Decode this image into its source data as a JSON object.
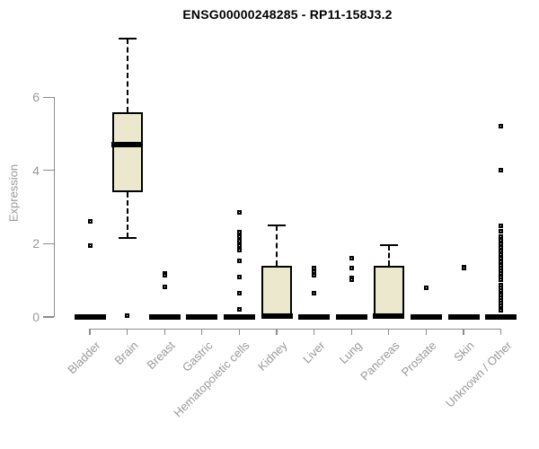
{
  "chart_data": {
    "type": "boxplot",
    "title": "ENSG00000248285 - RP11-158J3.2",
    "xlabel": "",
    "ylabel": "Expression",
    "ylim": [
      0,
      7.6
    ],
    "y_ticks": [
      0,
      2,
      4,
      6
    ],
    "grid": false,
    "legend": false,
    "categories": [
      "Bladder",
      "Brain",
      "Breast",
      "Gastric",
      "Hematopoietic cells",
      "Kidney",
      "Liver",
      "Lung",
      "Pancreas",
      "Prostate",
      "Skin",
      "Unknown / Other"
    ],
    "series": [
      {
        "name": "Bladder",
        "q1": 0,
        "median": 0,
        "q3": 0,
        "whisker_low": 0,
        "whisker_high": 0,
        "outliers": [
          2.6,
          1.95
        ]
      },
      {
        "name": "Brain",
        "q1": 3.4,
        "median": 4.7,
        "q3": 5.6,
        "whisker_low": 2.15,
        "whisker_high": 7.6,
        "outliers": [
          0.03
        ]
      },
      {
        "name": "Breast",
        "q1": 0,
        "median": 0,
        "q3": 0,
        "whisker_low": 0,
        "whisker_high": 0,
        "outliers": [
          1.2,
          1.13,
          0.81
        ]
      },
      {
        "name": "Gastric",
        "q1": 0,
        "median": 0,
        "q3": 0,
        "whisker_low": 0,
        "whisker_high": 0,
        "outliers": []
      },
      {
        "name": "Hematopoietic cells",
        "q1": 0,
        "median": 0,
        "q3": 0,
        "whisker_low": 0,
        "whisker_high": 0,
        "outliers": [
          2.85,
          2.31,
          2.19,
          2.07,
          1.94,
          1.82,
          1.52,
          1.08,
          0.64,
          0.2
        ]
      },
      {
        "name": "Kidney",
        "q1": 0,
        "median": 0.03,
        "q3": 1.4,
        "whisker_low": 0,
        "whisker_high": 2.5,
        "outliers": []
      },
      {
        "name": "Liver",
        "q1": 0,
        "median": 0,
        "q3": 0,
        "whisker_low": 0,
        "whisker_high": 0,
        "outliers": [
          1.33,
          1.23,
          1.13,
          0.66
        ]
      },
      {
        "name": "Lung",
        "q1": 0,
        "median": 0,
        "q3": 0,
        "whisker_low": 0,
        "whisker_high": 0,
        "outliers": [
          1.6,
          1.33,
          1.06,
          1.02
        ]
      },
      {
        "name": "Pancreas",
        "q1": 0,
        "median": 0.03,
        "q3": 1.4,
        "whisker_low": 0,
        "whisker_high": 1.95,
        "outliers": []
      },
      {
        "name": "Prostate",
        "q1": 0,
        "median": 0,
        "q3": 0,
        "whisker_low": 0,
        "whisker_high": 0,
        "outliers": [
          0.8
        ]
      },
      {
        "name": "Skin",
        "q1": 0,
        "median": 0,
        "q3": 0,
        "whisker_low": 0,
        "whisker_high": 0,
        "outliers": [
          1.37,
          1.33
        ]
      },
      {
        "name": "Unknown / Other",
        "q1": 0,
        "median": 0,
        "q3": 0,
        "whisker_low": 0,
        "whisker_high": 0,
        "outliers": [
          5.2,
          4.0,
          2.5,
          2.35,
          2.2,
          2.1,
          2.0,
          1.9,
          1.8,
          1.7,
          1.6,
          1.5,
          1.42,
          1.34,
          1.26,
          1.18,
          1.1,
          1.02,
          0.88,
          0.8,
          0.73,
          0.66,
          0.59,
          0.52,
          0.45,
          0.38,
          0.31,
          0.24,
          0.18
        ]
      }
    ],
    "colors": {
      "box_fill": "#ece8cd",
      "box_stroke": "#000000",
      "axis_line": "#8c8c8c",
      "tick_text": "#999999",
      "title_text": "#000000",
      "background": "#ffffff"
    }
  }
}
